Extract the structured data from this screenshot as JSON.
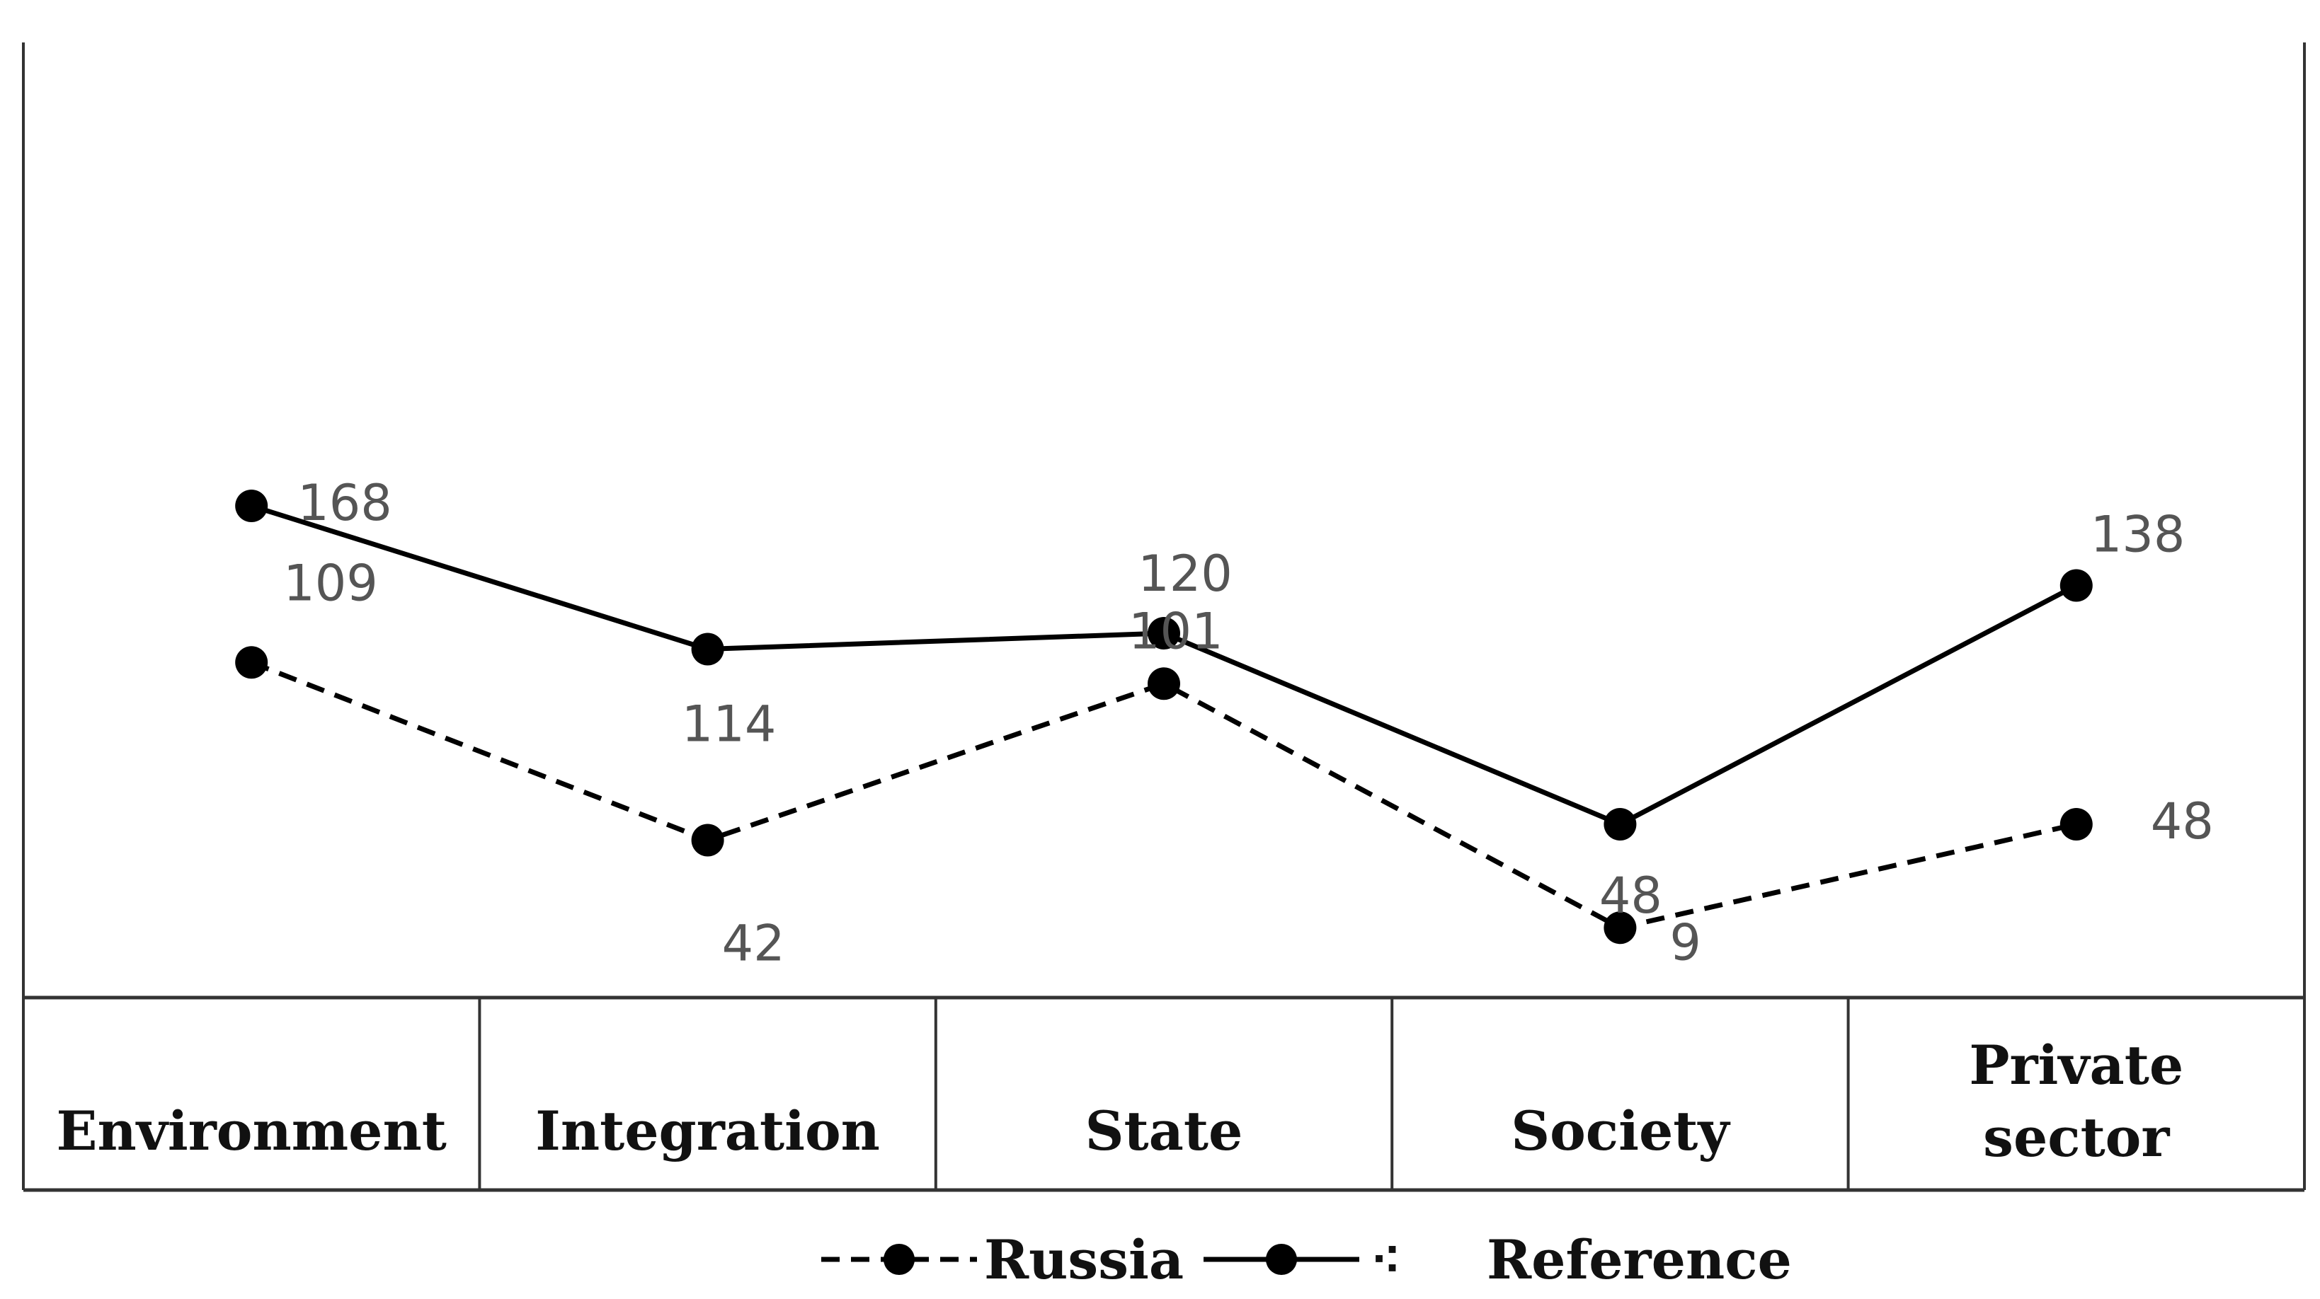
{
  "chart_data": {
    "type": "line",
    "title": "",
    "xlabel": "",
    "ylabel": "",
    "categories": [
      [
        "Environment"
      ],
      [
        "Integration"
      ],
      [
        "State"
      ],
      [
        "Society"
      ],
      [
        "Private",
        "sector"
      ]
    ],
    "series": [
      {
        "name": "Russia",
        "values": [
          109,
          42,
          101,
          9,
          48
        ],
        "line_style": "dashed",
        "color": "#000000"
      },
      {
        "name": "Reference",
        "values": [
          168,
          114,
          120,
          48,
          138
        ],
        "line_style": "solid",
        "color": "#000000"
      }
    ],
    "grid": false,
    "legend_position": "bottom",
    "legend_stray_glyph": "⁖"
  }
}
